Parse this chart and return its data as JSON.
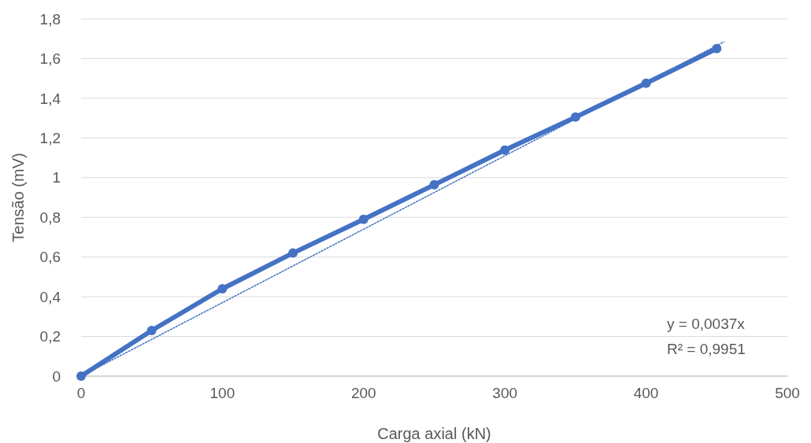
{
  "chart_data": {
    "type": "line",
    "xlabel": "Carga axial (kN)",
    "ylabel": "Tensão (mV)",
    "x": [
      0,
      50,
      100,
      150,
      200,
      250,
      300,
      350,
      400,
      450
    ],
    "series": [
      {
        "color": "#4472c4",
        "values": [
          0,
          0.23,
          0.44,
          0.62,
          0.79,
          0.964,
          1.139,
          1.305,
          1.476,
          1.65
        ],
        "marker": "circle",
        "line_style": "solid"
      },
      {
        "color": "#4472c4",
        "x": [
          0,
          455
        ],
        "values": [
          0,
          1.684
        ],
        "marker": "none",
        "line_style": "dotted"
      }
    ],
    "xlim": [
      0,
      500
    ],
    "xticks": [
      0,
      100,
      200,
      300,
      400,
      500
    ],
    "ylim": [
      0,
      1.8
    ],
    "yticks": [
      0,
      {
        "value": 0.2,
        "label": "0,2"
      },
      {
        "value": 0.4,
        "label": "0,4"
      },
      {
        "value": 0.6,
        "label": "0,6"
      },
      {
        "value": 0.8,
        "label": "0,8"
      },
      1,
      {
        "value": 1.2,
        "label": "1,2"
      },
      {
        "value": 1.4,
        "label": "1,4"
      },
      {
        "value": 1.6,
        "label": "1,6"
      },
      {
        "value": 1.8,
        "label": "1,8"
      }
    ],
    "grid": "y",
    "annotations": [
      "y = 0,0037x",
      "R² = 0,9951"
    ]
  }
}
